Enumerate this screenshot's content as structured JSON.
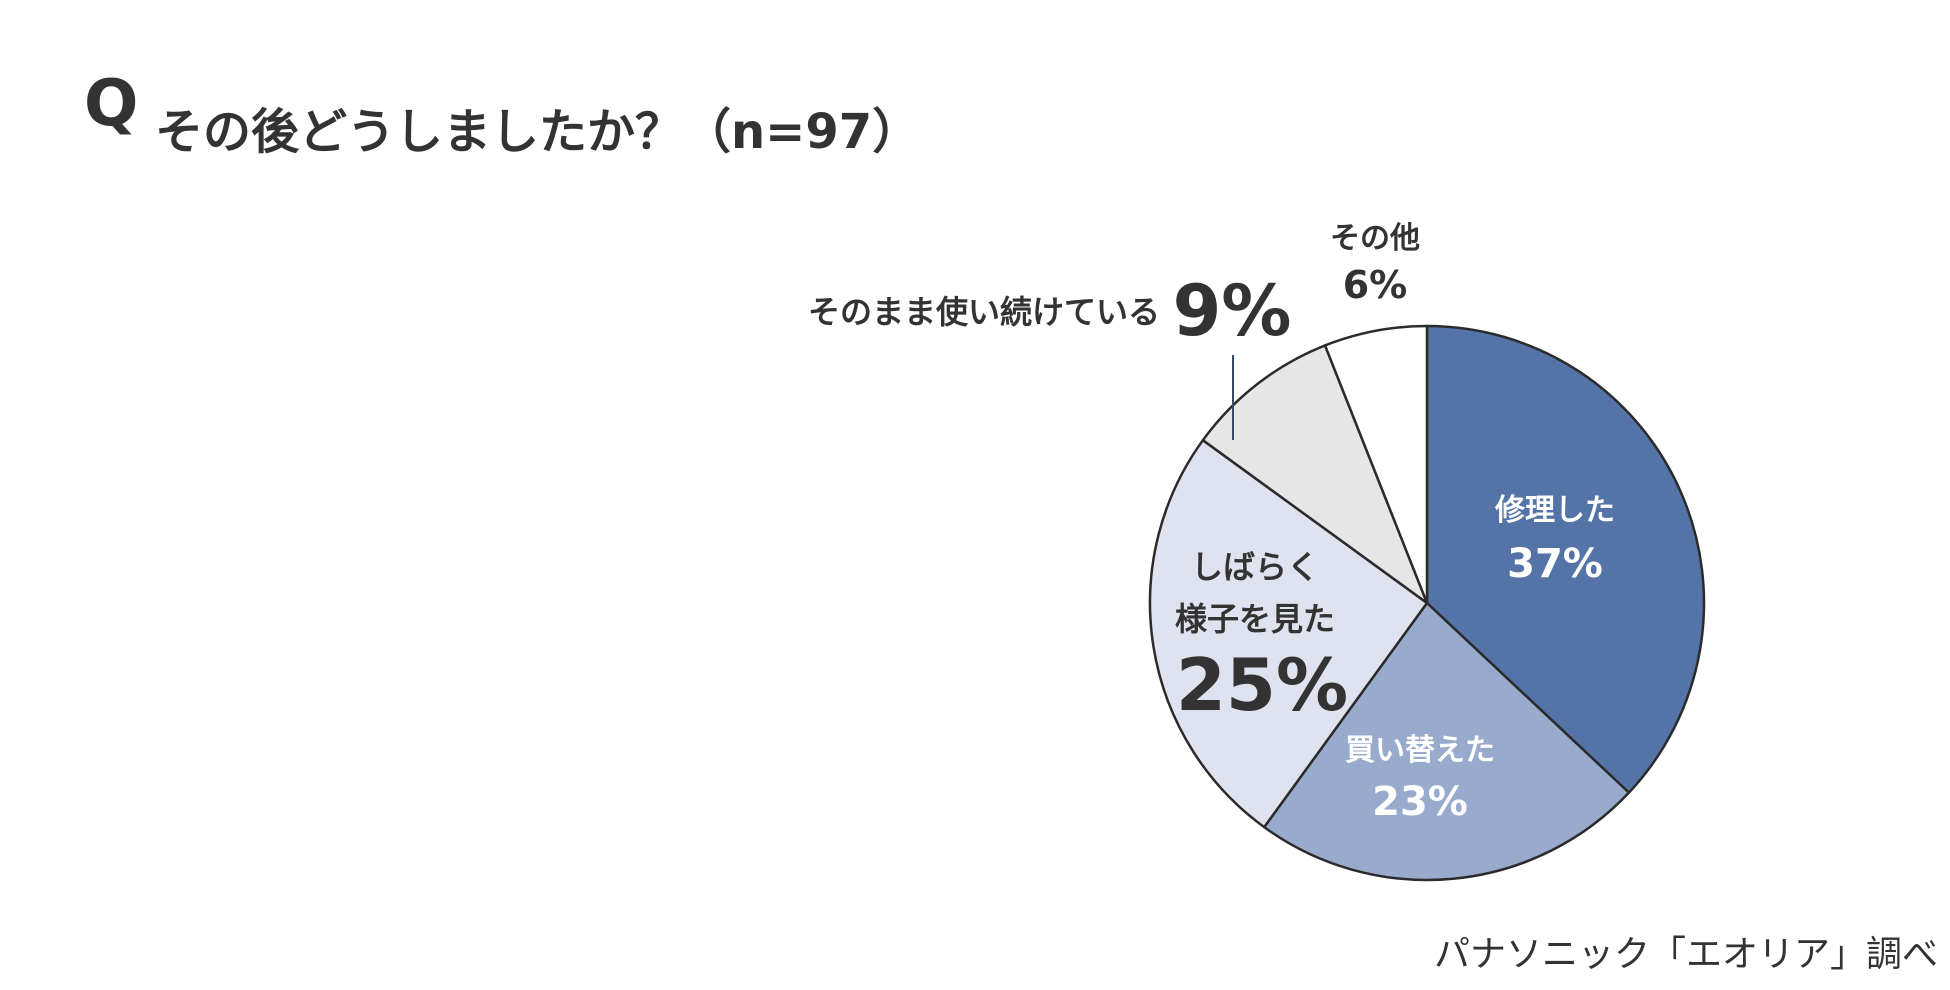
{
  "header": {
    "q_mark": "Q",
    "question": "その後どうしましたか？（n=97）"
  },
  "footer": {
    "source": "パナソニック「エオリア」調べ"
  },
  "chart_data": {
    "type": "pie",
    "title": "その後どうしましたか？（n=97）",
    "unit": "%",
    "start": "12 o'clock, clockwise",
    "slices": [
      {
        "label": "修理した",
        "value": 37,
        "value_label": "37%",
        "color": "#5474a8",
        "text_color": "#ffffff"
      },
      {
        "label": "買い替えた",
        "value": 23,
        "value_label": "23%",
        "color": "#98abcc",
        "text_color": "#ffffff"
      },
      {
        "label": "しばらく様子を見た",
        "label_lines": [
          "しばらく",
          "様子を見た"
        ],
        "value": 25,
        "value_label": "25%",
        "color": "#dfe3ef",
        "text_color": "#333333"
      },
      {
        "label": "そのまま使い続けている",
        "value": 9,
        "value_label": "9%",
        "color": "#e6e6e6",
        "text_color": "#333333"
      },
      {
        "label": "その他",
        "value": 6,
        "value_label": "6%",
        "color": "#ffffff",
        "text_color": "#333333"
      }
    ],
    "border_color": "#2b2b2b",
    "leader_color": "#3a4a66"
  }
}
